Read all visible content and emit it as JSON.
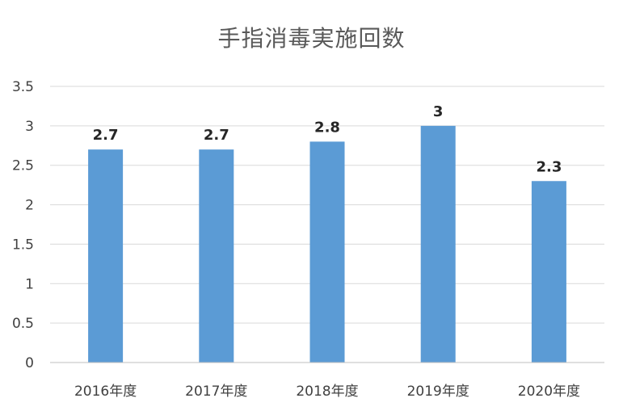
{
  "chart_data": {
    "type": "bar",
    "title": "手指消毒実施回数",
    "categories": [
      "2016年度",
      "2017年度",
      "2018年度",
      "2019年度",
      "2020年度"
    ],
    "values": [
      2.7,
      2.7,
      2.8,
      3,
      2.3
    ],
    "value_labels": [
      "2.7",
      "2.7",
      "2.8",
      "3",
      "2.3"
    ],
    "ylim": [
      0,
      3.5
    ],
    "yticks": [
      "0",
      "0.5",
      "1",
      "1.5",
      "2",
      "2.5",
      "3",
      "3.5"
    ],
    "xlabel": "",
    "ylabel": "",
    "grid": true,
    "legend": "none",
    "bar_color": "#5B9BD5",
    "grid_color": "#D9D9D9"
  }
}
